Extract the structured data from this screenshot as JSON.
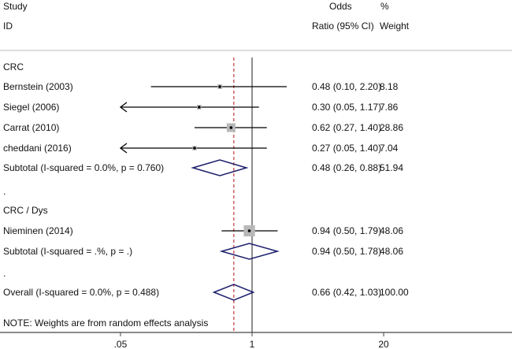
{
  "chart_data": {
    "type": "forest",
    "headers": {
      "study": "Study",
      "id": "ID",
      "or_top": "Odds",
      "or_bottom": "Ratio (95% CI)",
      "weight_top": "%",
      "weight_bottom": "Weight"
    },
    "x_scale": "log",
    "xlim": [
      0.05,
      20
    ],
    "x_ticks": [
      {
        "value": 0.05,
        "label": ".05"
      },
      {
        "value": 1,
        "label": "1"
      },
      {
        "value": 20,
        "label": "20"
      }
    ],
    "null_line": 1,
    "overall_line": 0.66,
    "colors": {
      "diamond": "#1c1f6b",
      "overall_line": "#c0393b",
      "square": "#b8b8b8",
      "line": "#000000"
    },
    "rows": [
      {
        "kind": "group",
        "label": "CRC"
      },
      {
        "kind": "study",
        "label": "Bernstein (2003)",
        "or": 0.48,
        "lo": 0.1,
        "hi": 2.2,
        "text": "0.48 (0.10, 2.20)",
        "weight": "8.18"
      },
      {
        "kind": "study",
        "label": "Siegel (2006)",
        "or": 0.3,
        "lo": 0.05,
        "hi": 1.17,
        "text": "0.30 (0.05, 1.17)",
        "weight": "7.86",
        "arrow_left": true
      },
      {
        "kind": "study",
        "label": "Carrat (2010)",
        "or": 0.62,
        "lo": 0.27,
        "hi": 1.4,
        "text": "0.62 (0.27, 1.40)",
        "weight": "28.86"
      },
      {
        "kind": "study",
        "label": "cheddani (2016)",
        "or": 0.27,
        "lo": 0.05,
        "hi": 1.4,
        "text": "0.27 (0.05, 1.40)",
        "weight": "7.04",
        "arrow_left": true
      },
      {
        "kind": "subtotal",
        "label": "Subtotal  (I-squared = 0.0%, p = 0.760)",
        "or": 0.48,
        "lo": 0.26,
        "hi": 0.88,
        "text": "0.48 (0.26, 0.88)",
        "weight": "51.94"
      },
      {
        "kind": "spacer",
        "label": "."
      },
      {
        "kind": "group",
        "label": "CRC / Dys"
      },
      {
        "kind": "study",
        "label": "Nieminen (2014)",
        "or": 0.94,
        "lo": 0.5,
        "hi": 1.79,
        "text": "0.94 (0.50, 1.79)",
        "weight": "48.06"
      },
      {
        "kind": "subtotal",
        "label": "Subtotal  (I-squared = .%, p = .)",
        "or": 0.94,
        "lo": 0.5,
        "hi": 1.78,
        "text": "0.94 (0.50, 1.78)",
        "weight": "48.06"
      },
      {
        "kind": "spacer",
        "label": "."
      },
      {
        "kind": "overall",
        "label": "Overall  (I-squared = 0.0%, p = 0.488)",
        "or": 0.66,
        "lo": 0.42,
        "hi": 1.03,
        "text": "0.66 (0.42, 1.03)",
        "weight": "100.00"
      }
    ],
    "note": "NOTE: Weights are from random effects analysis"
  }
}
